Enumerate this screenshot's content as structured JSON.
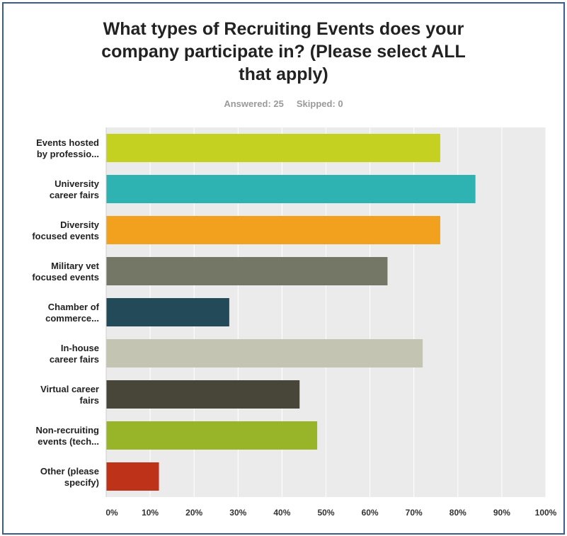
{
  "header": {
    "title_lines": [
      "What types of Recruiting Events does your",
      "company participate in? (Please select ALL",
      "that apply)"
    ],
    "answered": "Answered: 25",
    "skipped": "Skipped: 0"
  },
  "chart_data": {
    "type": "bar",
    "orientation": "horizontal",
    "categories": [
      [
        "Events hosted",
        "by professio..."
      ],
      [
        "University",
        "career fairs"
      ],
      [
        "Diversity",
        "focused events"
      ],
      [
        "Military vet",
        "focused events"
      ],
      [
        "Chamber of",
        "commerce..."
      ],
      [
        "In-house",
        "career fairs"
      ],
      [
        "Virtual career",
        "fairs"
      ],
      [
        "Non-recruiting",
        "events (tech..."
      ],
      [
        "Other (please",
        "specify)"
      ]
    ],
    "values": [
      76,
      84,
      76,
      64,
      28,
      72,
      44,
      48,
      12
    ],
    "colors": [
      "#c5d121",
      "#2fb2b2",
      "#f2a11e",
      "#757766",
      "#224a59",
      "#c4c4b3",
      "#474638",
      "#98b52a",
      "#bd3219"
    ],
    "xlim": [
      0,
      100
    ],
    "xticks": [
      "0%",
      "10%",
      "20%",
      "30%",
      "40%",
      "50%",
      "60%",
      "70%",
      "80%",
      "90%",
      "100%"
    ],
    "grid": true,
    "background": "#ebebeb"
  }
}
